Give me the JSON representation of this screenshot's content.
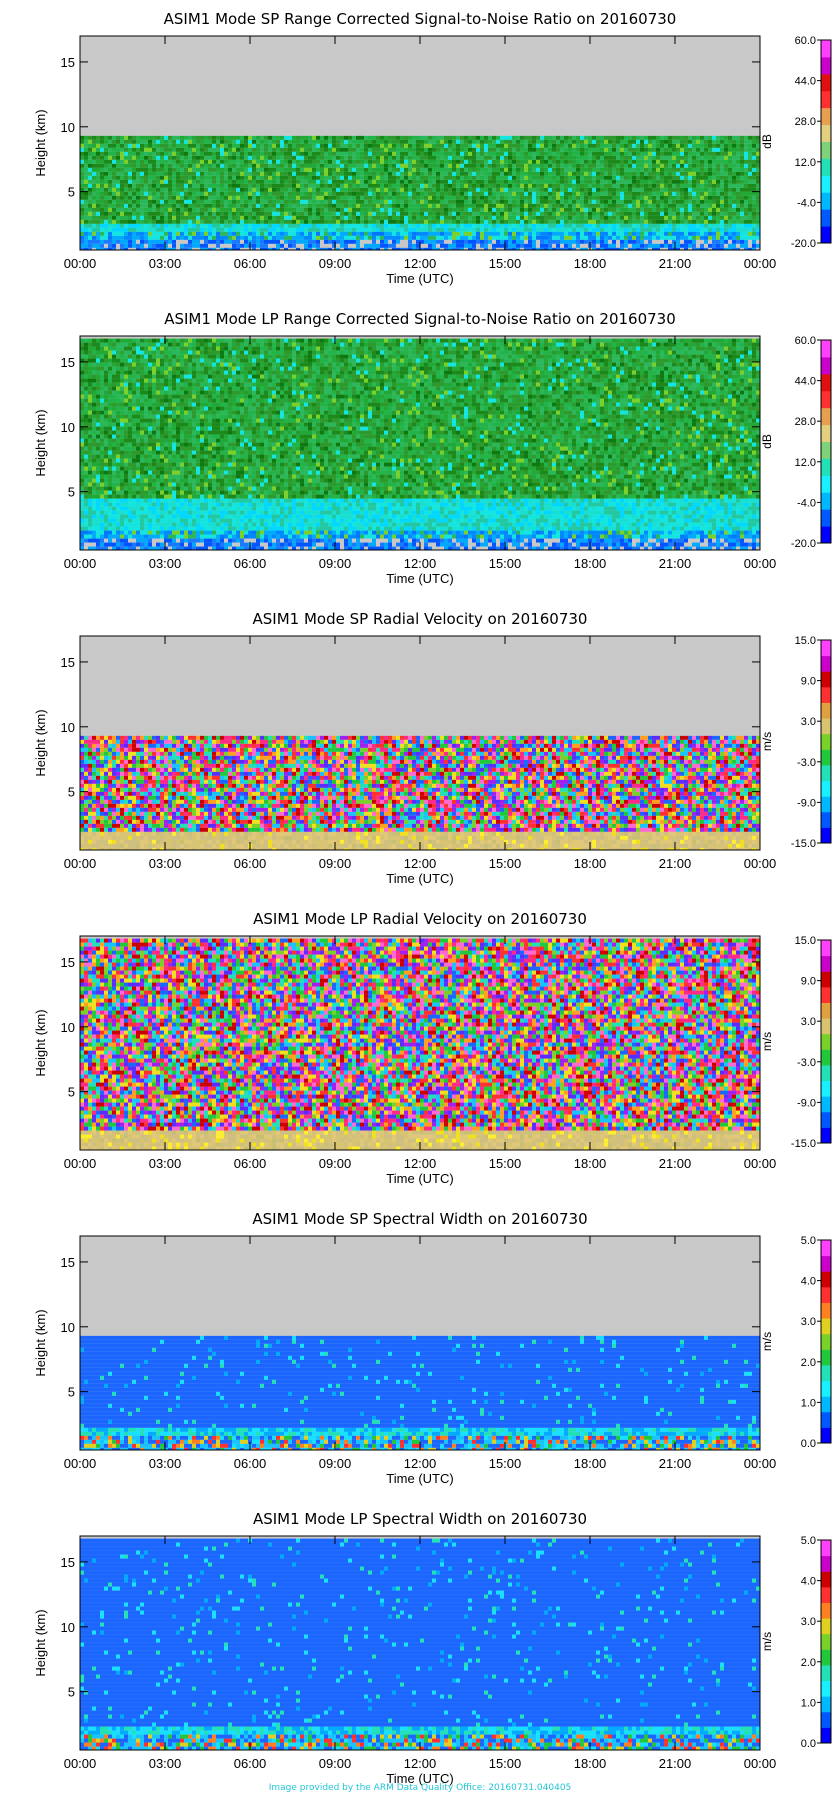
{
  "footer": "Image provided by the ARM Data Quality Office: 20160731.040405",
  "palettes": {
    "snr": [
      "#0044ff",
      "#0077ff",
      "#00aaff",
      "#00d8ff",
      "#13e6e0",
      "#22c8a0",
      "#2ab85a",
      "#22a836",
      "#2c9a2c",
      "#1b8a1b"
    ],
    "vel": [
      "#ff2a88",
      "#ff6ad2",
      "#a020f0",
      "#5a2cff",
      "#1a66ff",
      "#18c4ff",
      "#22e0b8",
      "#22c83c",
      "#7ad12a",
      "#f0e020",
      "#ffa020",
      "#ff3030",
      "#cc0000"
    ],
    "width": [
      "#1a66ff",
      "#00aaff",
      "#18e0ff",
      "#22e0b8",
      "#22c83c",
      "#e0d020",
      "#ff8020",
      "#ff3030",
      "#cc00cc"
    ],
    "colorbar_snr": [
      "#0000ff",
      "#0058ff",
      "#00b8ff",
      "#18f0ff",
      "#22e0b8",
      "#7ed27a",
      "#e0d080",
      "#e6a050",
      "#ff3030",
      "#e01010",
      "#cc00cc",
      "#ff40ff"
    ],
    "colorbar_vel": [
      "#0000ff",
      "#0058ff",
      "#00b8ff",
      "#18f0ff",
      "#22e0b8",
      "#22c83c",
      "#7ad12a",
      "#d8c470",
      "#e0a040",
      "#ff3030",
      "#cc0000",
      "#cc00cc",
      "#ff40ff"
    ],
    "colorbar_width": [
      "#0000ff",
      "#0058ff",
      "#00b8ff",
      "#18f0ff",
      "#22e0b8",
      "#22c83c",
      "#7ad12a",
      "#e0d020",
      "#ff8020",
      "#ff3030",
      "#cc0000",
      "#cc00cc",
      "#ff40ff"
    ]
  },
  "chart_data": [
    {
      "type": "heatmap",
      "title": "ASIM1 Mode SP Range Corrected Signal-to-Noise Ratio on 20160730",
      "xlabel": "Time (UTC)",
      "ylabel": "Height (km)",
      "xticks": [
        "00:00",
        "03:00",
        "06:00",
        "09:00",
        "12:00",
        "15:00",
        "18:00",
        "21:00",
        "00:00"
      ],
      "yticks": [
        5,
        10,
        15
      ],
      "ylim": [
        0.5,
        17
      ],
      "data_top_km": 9.3,
      "missing_color": "#c8c8c8",
      "palette": "snr",
      "base": "snr_sp",
      "colorbar": {
        "unit": "dB",
        "ticks": [
          "60.0",
          "44.0",
          "28.0",
          "12.0",
          "-4.0",
          "-20.0"
        ],
        "range": [
          -20,
          60
        ],
        "palette": "colorbar_snr"
      }
    },
    {
      "type": "heatmap",
      "title": "ASIM1 Mode LP Range Corrected Signal-to-Noise Ratio on 20160730",
      "xlabel": "Time (UTC)",
      "ylabel": "Height (km)",
      "xticks": [
        "00:00",
        "03:00",
        "06:00",
        "09:00",
        "12:00",
        "15:00",
        "18:00",
        "21:00",
        "00:00"
      ],
      "yticks": [
        5,
        10,
        15
      ],
      "ylim": [
        0.5,
        17
      ],
      "data_top_km": 16.8,
      "missing_color": "#c8c8c8",
      "palette": "snr",
      "base": "snr_lp",
      "colorbar": {
        "unit": "dB",
        "ticks": [
          "60.0",
          "44.0",
          "28.0",
          "12.0",
          "-4.0",
          "-20.0"
        ],
        "range": [
          -20,
          60
        ],
        "palette": "colorbar_snr"
      }
    },
    {
      "type": "heatmap",
      "title": "ASIM1 Mode SP Radial Velocity  on 20160730",
      "xlabel": "Time (UTC)",
      "ylabel": "Height (km)",
      "xticks": [
        "00:00",
        "03:00",
        "06:00",
        "09:00",
        "12:00",
        "15:00",
        "18:00",
        "21:00",
        "00:00"
      ],
      "yticks": [
        5,
        10,
        15
      ],
      "ylim": [
        0.5,
        17
      ],
      "data_top_km": 9.3,
      "missing_color": "#c8c8c8",
      "palette": "vel",
      "base": "vel_sp",
      "colorbar": {
        "unit": "m/s",
        "ticks": [
          "15.0",
          "9.0",
          "3.0",
          "-3.0",
          "-9.0",
          "-15.0"
        ],
        "range": [
          -15,
          15
        ],
        "palette": "colorbar_vel"
      }
    },
    {
      "type": "heatmap",
      "title": "ASIM1 Mode LP Radial Velocity  on 20160730",
      "xlabel": "Time (UTC)",
      "ylabel": "Height (km)",
      "xticks": [
        "00:00",
        "03:00",
        "06:00",
        "09:00",
        "12:00",
        "15:00",
        "18:00",
        "21:00",
        "00:00"
      ],
      "yticks": [
        5,
        10,
        15
      ],
      "ylim": [
        0.5,
        17
      ],
      "data_top_km": 16.8,
      "missing_color": "#c8c8c8",
      "palette": "vel",
      "base": "vel_lp",
      "colorbar": {
        "unit": "m/s",
        "ticks": [
          "15.0",
          "9.0",
          "3.0",
          "-3.0",
          "-9.0",
          "-15.0"
        ],
        "range": [
          -15,
          15
        ],
        "palette": "colorbar_vel"
      }
    },
    {
      "type": "heatmap",
      "title": "ASIM1 Mode SP Spectral Width  on 20160730",
      "xlabel": "Time (UTC)",
      "ylabel": "Height (km)",
      "xticks": [
        "00:00",
        "03:00",
        "06:00",
        "09:00",
        "12:00",
        "15:00",
        "18:00",
        "21:00",
        "00:00"
      ],
      "yticks": [
        5,
        10,
        15
      ],
      "ylim": [
        0.5,
        17
      ],
      "data_top_km": 9.3,
      "missing_color": "#c8c8c8",
      "palette": "width",
      "base": "width_sp",
      "colorbar": {
        "unit": "m/s",
        "ticks": [
          "5.0",
          "4.0",
          "3.0",
          "2.0",
          "1.0",
          "0.0"
        ],
        "range": [
          0,
          5
        ],
        "palette": "colorbar_width"
      }
    },
    {
      "type": "heatmap",
      "title": "ASIM1 Mode LP Spectral Width  on 20160730",
      "xlabel": "Time (UTC)",
      "ylabel": "Height (km)",
      "xticks": [
        "00:00",
        "03:00",
        "06:00",
        "09:00",
        "12:00",
        "15:00",
        "18:00",
        "21:00",
        "00:00"
      ],
      "yticks": [
        5,
        10,
        15
      ],
      "ylim": [
        0.5,
        17
      ],
      "data_top_km": 16.8,
      "missing_color": "#c8c8c8",
      "palette": "width",
      "base": "width_lp",
      "colorbar": {
        "unit": "m/s",
        "ticks": [
          "5.0",
          "4.0",
          "3.0",
          "2.0",
          "1.0",
          "0.0"
        ],
        "range": [
          0,
          5
        ],
        "palette": "colorbar_width"
      }
    }
  ]
}
